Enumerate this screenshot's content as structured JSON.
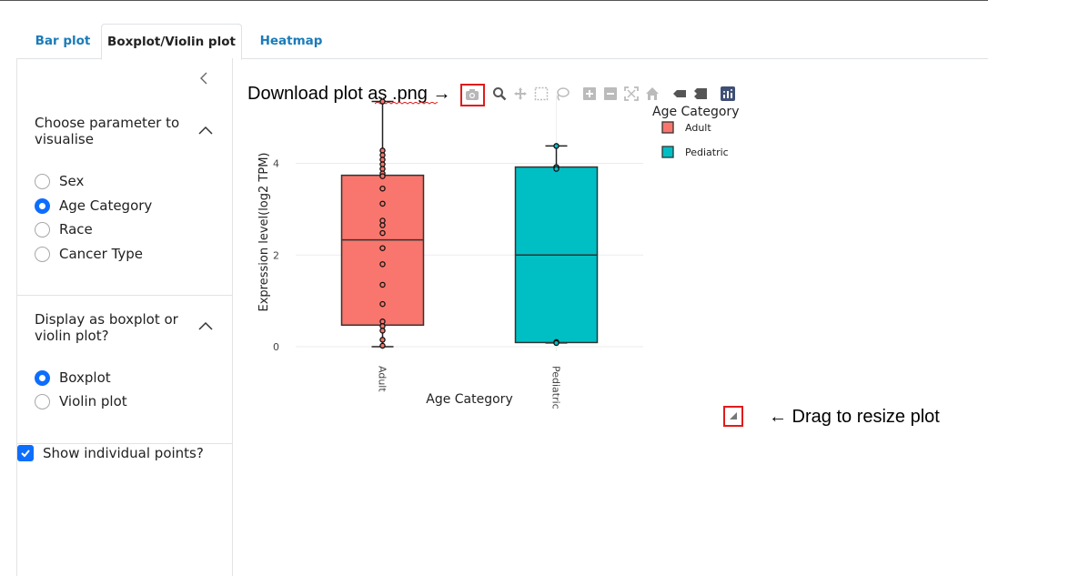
{
  "tabs": [
    {
      "label": "Bar plot",
      "active": false
    },
    {
      "label": "Boxplot/Violin plot",
      "active": true
    },
    {
      "label": "Heatmap",
      "active": false
    }
  ],
  "sidebar": {
    "parameter_section": {
      "title": "Choose parameter to visualise",
      "options": [
        {
          "label": "Sex",
          "selected": false
        },
        {
          "label": "Age Category",
          "selected": true
        },
        {
          "label": "Race",
          "selected": false
        },
        {
          "label": "Cancer Type",
          "selected": false
        }
      ]
    },
    "display_section": {
      "title": "Display as boxplot or violin plot?",
      "options": [
        {
          "label": "Boxplot",
          "selected": true
        },
        {
          "label": "Violin plot",
          "selected": false
        }
      ]
    },
    "show_points": {
      "label": "Show individual points?",
      "checked": true
    }
  },
  "annotations": {
    "download": "Download plot as .png →",
    "resize": "← Drag to resize plot"
  },
  "toolbar_icons": [
    "camera-icon",
    "zoom-icon",
    "pan-icon",
    "box-select-icon",
    "lasso-icon",
    "zoom-in-icon",
    "zoom-out-icon",
    "autoscale-icon",
    "reset-axes-icon",
    "spike-lines-icon",
    "compare-hover-icon",
    "plotly-logo-icon"
  ],
  "colors": {
    "accent": "#0d6efd",
    "tab_link": "#1a7bb9",
    "adult": "#f8766d",
    "pediatric": "#00bfc4",
    "annotation_box": "#e01b1b"
  },
  "chart_data": {
    "type": "box",
    "xlabel": "Age Category",
    "ylabel": "Expression level(log2 TPM)",
    "categories": [
      "Adult",
      "Pediatric"
    ],
    "ylim": [
      -0.1,
      5.5
    ],
    "yticks": [
      0,
      2,
      4
    ],
    "grid": true,
    "legend": {
      "title": "Age Category",
      "entries": [
        "Adult",
        "Pediatric"
      ],
      "position": "top-right"
    },
    "series": [
      {
        "name": "Adult",
        "color": "#f8766d",
        "min": 0.0,
        "q1": 0.47,
        "median": 2.33,
        "q3": 3.74,
        "max": 5.35,
        "points": [
          5.35,
          4.28,
          4.18,
          4.08,
          3.98,
          3.88,
          3.78,
          3.72,
          3.45,
          3.12,
          2.75,
          2.65,
          2.48,
          2.15,
          1.8,
          1.35,
          0.93,
          0.55,
          0.45,
          0.35,
          0.15,
          0.02
        ]
      },
      {
        "name": "Pediatric",
        "color": "#00bfc4",
        "min": 0.08,
        "q1": 0.09,
        "median": 2.0,
        "q3": 3.92,
        "max": 4.38,
        "points": [
          4.38,
          3.92,
          3.88,
          0.1,
          0.08
        ]
      }
    ]
  }
}
